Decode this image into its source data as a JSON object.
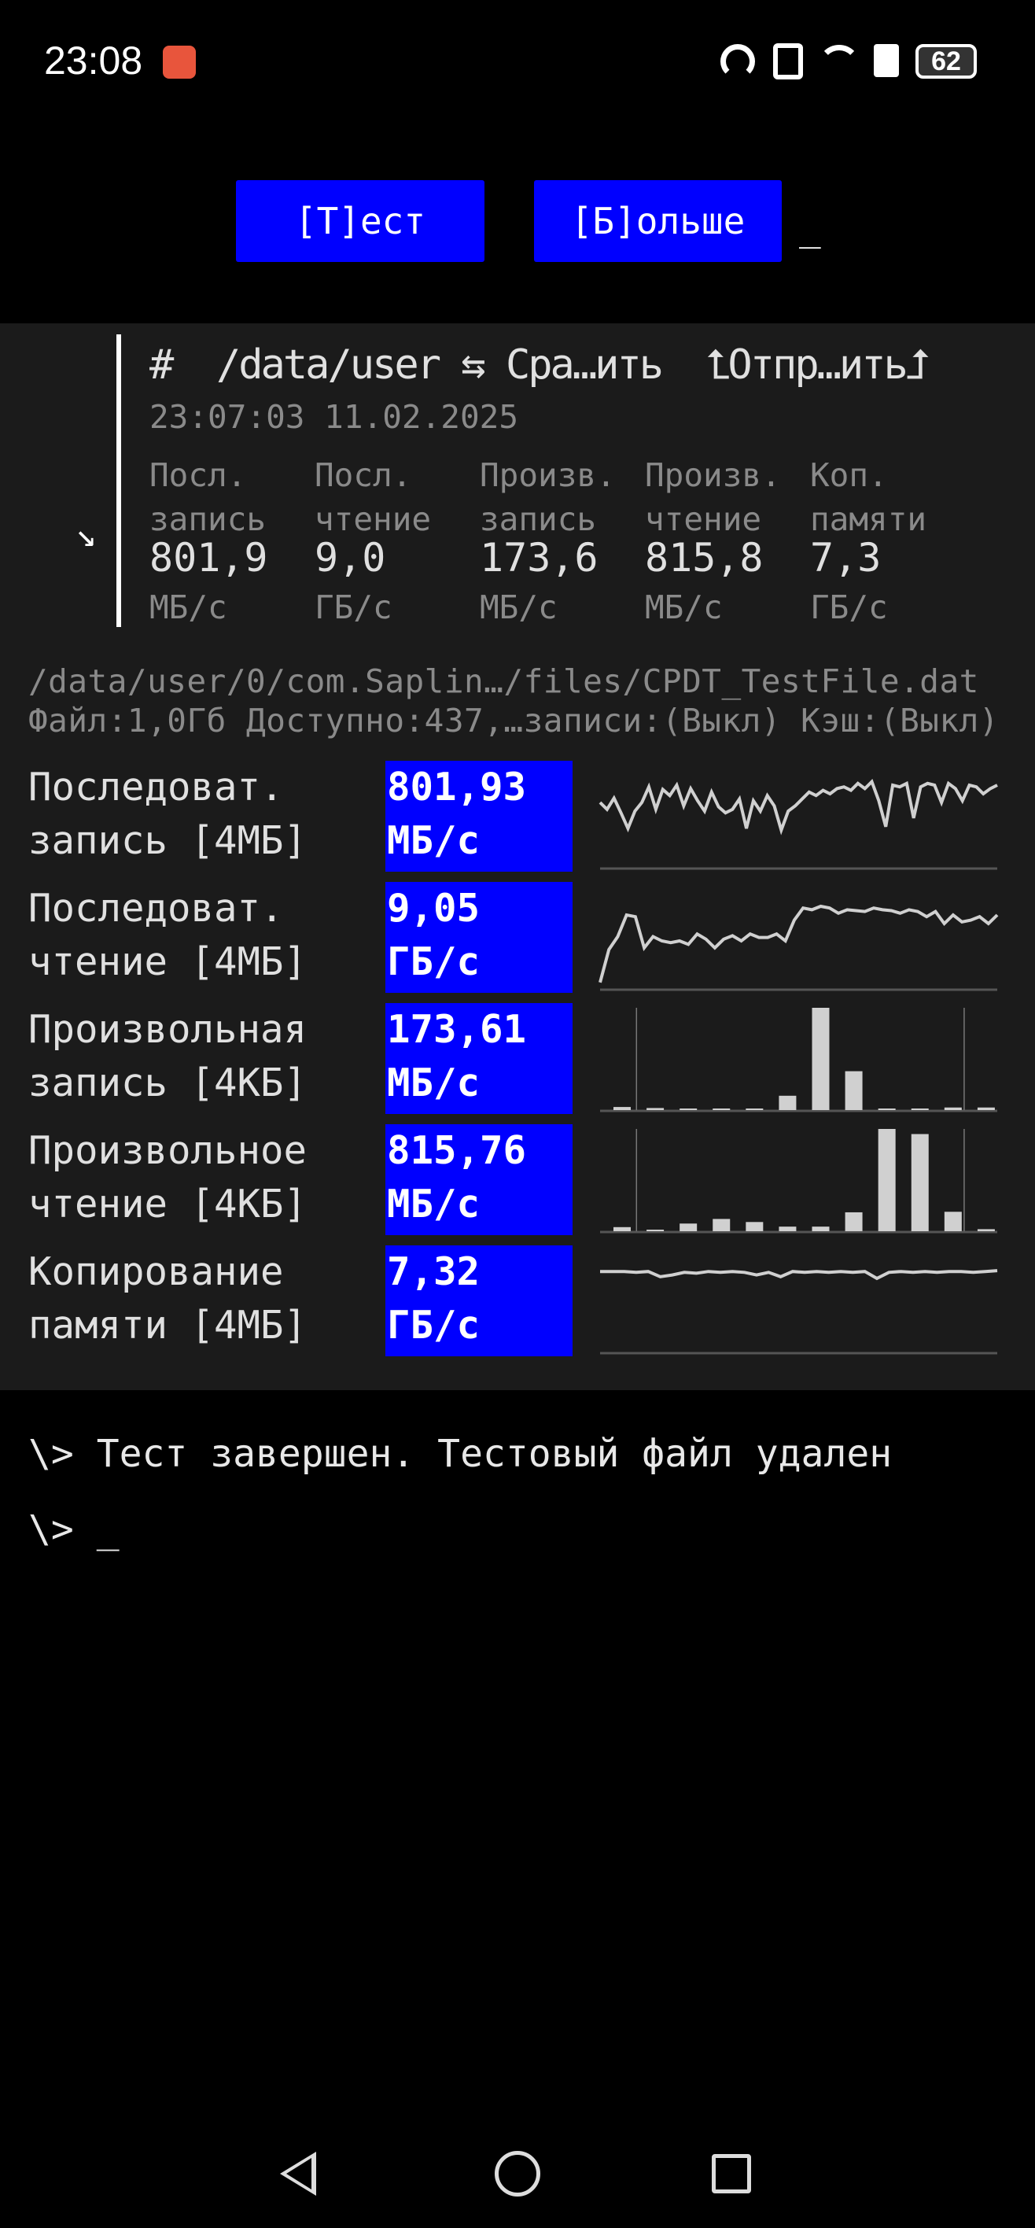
{
  "status_bar": {
    "time": "23:08",
    "battery": "62",
    "icons": [
      "battery-alert-icon",
      "speedometer-icon",
      "nfc-icon",
      "wifi-icon",
      "sim-alert-icon",
      "battery-icon"
    ]
  },
  "toolbar": {
    "test_label": "[Т]ест",
    "more_label": "[Б]ольше",
    "cursor": "_"
  },
  "result": {
    "hash": "#",
    "path": "/data/user",
    "compare": "⇆ Сра…ить",
    "send": "⮤Отпр…ить⮥",
    "timestamp": "23:07:03 11.02.2025",
    "arrow": "↘",
    "stats": [
      {
        "l1": "Посл.",
        "l2": "запись",
        "value": "801,9",
        "unit": "МБ/с"
      },
      {
        "l1": "Посл.",
        "l2": "чтение",
        "value": "9,0",
        "unit": "ГБ/с"
      },
      {
        "l1": "Произв.",
        "l2": "запись",
        "value": "173,6",
        "unit": "МБ/с"
      },
      {
        "l1": "Произв.",
        "l2": "чтение",
        "value": "815,8",
        "unit": "МБ/с"
      },
      {
        "l1": "Коп.",
        "l2": "памяти",
        "value": "7,3",
        "unit": "ГБ/с"
      }
    ]
  },
  "file_path": "/data/user/0/com.Saplin…/files/CPDT_TestFile.dat",
  "file_info": "Файл:1,0Гб Доступно:437,…записи:(Выкл) Кэш:(Выкл)",
  "tests": [
    {
      "l1": "Последоват.",
      "l2": "запись [4МБ]",
      "value": "801,93",
      "unit": "МБ/с"
    },
    {
      "l1": "Последоват.",
      "l2": "чтение [4МБ]",
      "value": "9,05",
      "unit": "ГБ/с"
    },
    {
      "l1": "Произвольная",
      "l2": "запись [4КБ]",
      "value": "173,61",
      "unit": "МБ/с"
    },
    {
      "l1": "Произвольное",
      "l2": "чтение [4КБ]",
      "value": "815,76",
      "unit": "МБ/с"
    },
    {
      "l1": "Копирование",
      "l2": "памяти [4МБ]",
      "value": "7,32",
      "unit": "ГБ/с"
    }
  ],
  "chart_data": [
    {
      "type": "line",
      "values": [
        70,
        62,
        75,
        58,
        40,
        60,
        70,
        88,
        62,
        85,
        78,
        90,
        66,
        86,
        72,
        60,
        82,
        65,
        58,
        62,
        74,
        40,
        72,
        60,
        78,
        66,
        38,
        60,
        66,
        74,
        82,
        78,
        84,
        80,
        86,
        88,
        84,
        92,
        86,
        94,
        72,
        42,
        90,
        88,
        92,
        52,
        88,
        92,
        90,
        70,
        92,
        86,
        72,
        90,
        88,
        80,
        86,
        90
      ]
    },
    {
      "type": "line",
      "values": [
        2,
        40,
        55,
        80,
        78,
        42,
        55,
        50,
        48,
        50,
        46,
        58,
        52,
        42,
        52,
        56,
        50,
        58,
        54,
        54,
        58,
        50,
        74,
        88,
        86,
        90,
        88,
        82,
        86,
        85,
        84,
        88,
        86,
        85,
        82,
        86,
        84,
        78,
        84,
        70,
        80,
        72,
        74,
        78,
        70,
        80
      ]
    },
    {
      "type": "bar",
      "values": [
        3,
        2,
        1,
        1,
        1,
        14,
        100,
        38,
        0.5,
        0.5,
        2.5,
        2.5
      ]
    },
    {
      "type": "bar",
      "values": [
        4,
        1.5,
        7.5,
        12,
        9,
        4.5,
        4.5,
        18.5,
        100,
        95,
        19,
        2
      ]
    },
    {
      "type": "line",
      "values": [
        88,
        88,
        88,
        87,
        88,
        82,
        84,
        87,
        86,
        88,
        87,
        88,
        87,
        84,
        87,
        82,
        88,
        87,
        88,
        87,
        88,
        87,
        88,
        80,
        87,
        88,
        87,
        88,
        87,
        88,
        88,
        87,
        88,
        89
      ]
    }
  ],
  "terminal": {
    "line1": "\\> Тест завершен. Тестовый файл удален",
    "line2": "\\> _"
  }
}
